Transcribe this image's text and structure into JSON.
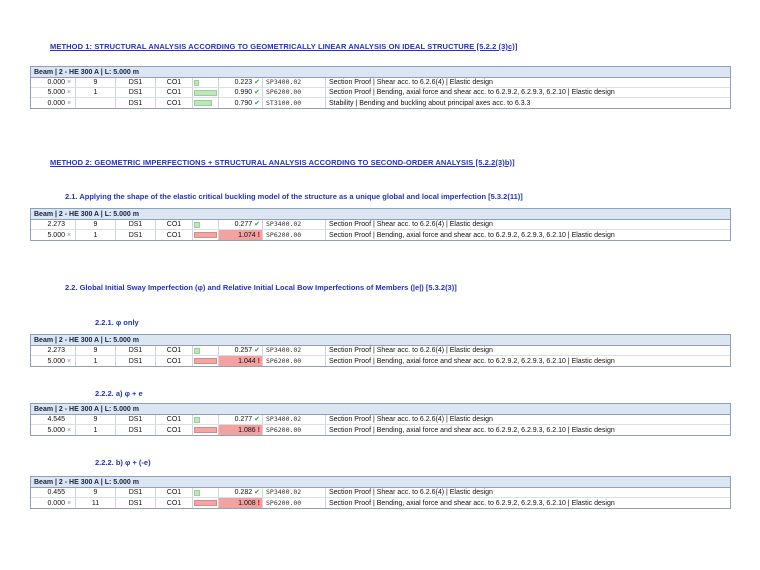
{
  "colors": {
    "heading_blue": "#2333bd",
    "table_header_bg": "#dce6f3",
    "pass_bar_green": "#bfe6bb",
    "fail_bar_red": "#f0a6a2",
    "fail_cell_bg": "#f2a2a0",
    "pass_check_green": "#2f9e36",
    "fail_mark_red": "#b40000",
    "table_border": "#8fa1b8"
  },
  "icons": {
    "check": "✔",
    "fail": "!",
    "extreme_marker": "×"
  },
  "headings": {
    "method1": "METHOD 1: STRUCTURAL ANALYSIS ACCORDING TO GEOMETRICALLY LINEAR ANALYSIS ON IDEAL STRUCTURE [5.2.2 (3)c)]",
    "method2": "METHOD 2: GEOMETRIC IMPERFECTIONS + STRUCTURAL ANALYSIS ACCORDING TO SECOND-ORDER ANALYSIS [5.2.2(3)b)]",
    "s21": "2.1. Applying the shape of the elastic critical buckling model of the structure as a unique global and local imperfection [5.3.2(11)]",
    "s22": "2.2. Global Initial Sway Imperfection (φ) and Relative Initial Local Bow Imperfections of Members (|e|) [5.3.2(3)]",
    "s221": "2.2.1. φ only",
    "s222a": "2.2.2. a) φ + e",
    "s222b": "2.2.2. b) φ + (-e)"
  },
  "table_header": "Beam | 2 - HE 300 A | L: 5.000 m",
  "tables": [
    {
      "rows": [
        {
          "x": "0.000",
          "marker": true,
          "n": "9",
          "ds": "DS1",
          "co": "CO1",
          "ratio": "0.223",
          "status": "pass",
          "code": "SP3400.02",
          "desc": "Section Proof | Shear acc. to 6.2.6(4) | Elastic design"
        },
        {
          "x": "5.000",
          "marker": true,
          "n": "1",
          "ds": "DS1",
          "co": "CO1",
          "ratio": "0.990",
          "status": "pass",
          "code": "SP6200.00",
          "desc": "Section Proof | Bending, axial force and shear acc. to 6.2.9.2, 6.2.9.3, 6.2.10 | Elastic design"
        },
        {
          "x": "0.000",
          "marker": true,
          "n": "",
          "ds": "DS1",
          "co": "CO1",
          "ratio": "0.790",
          "status": "pass",
          "code": "ST3100.00",
          "desc": "Stability | Bending and buckling about principal axes acc. to 6.3.3"
        }
      ]
    },
    {
      "rows": [
        {
          "x": "2.273",
          "marker": false,
          "n": "9",
          "ds": "DS1",
          "co": "CO1",
          "ratio": "0.277",
          "status": "pass",
          "code": "SP3400.02",
          "desc": "Section Proof | Shear acc. to 6.2.6(4) | Elastic design"
        },
        {
          "x": "5.000",
          "marker": true,
          "n": "1",
          "ds": "DS1",
          "co": "CO1",
          "ratio": "1.074",
          "status": "fail",
          "code": "SP6200.00",
          "desc": "Section Proof | Bending, axial force and shear acc. to 6.2.9.2, 6.2.9.3, 6.2.10 | Elastic design"
        }
      ]
    },
    {
      "rows": [
        {
          "x": "2.273",
          "marker": false,
          "n": "9",
          "ds": "DS1",
          "co": "CO1",
          "ratio": "0.257",
          "status": "pass",
          "code": "SP3400.02",
          "desc": "Section Proof | Shear acc. to 6.2.6(4) | Elastic design"
        },
        {
          "x": "5.000",
          "marker": true,
          "n": "1",
          "ds": "DS1",
          "co": "CO1",
          "ratio": "1.044",
          "status": "fail",
          "code": "SP6200.00",
          "desc": "Section Proof | Bending, axial force and shear acc. to 6.2.9.2, 6.2.9.3, 6.2.10 | Elastic design"
        }
      ]
    },
    {
      "rows": [
        {
          "x": "4.545",
          "marker": false,
          "n": "9",
          "ds": "DS1",
          "co": "CO1",
          "ratio": "0.277",
          "status": "pass",
          "code": "SP3400.02",
          "desc": "Section Proof | Shear acc. to 6.2.6(4) | Elastic design"
        },
        {
          "x": "5.000",
          "marker": true,
          "n": "1",
          "ds": "DS1",
          "co": "CO1",
          "ratio": "1.086",
          "status": "fail",
          "code": "SP6200.00",
          "desc": "Section Proof | Bending, axial force and shear acc. to 6.2.9.2, 6.2.9.3, 6.2.10 | Elastic design"
        }
      ]
    },
    {
      "rows": [
        {
          "x": "0.455",
          "marker": false,
          "n": "9",
          "ds": "DS1",
          "co": "CO1",
          "ratio": "0.282",
          "status": "pass",
          "code": "SP3400.02",
          "desc": "Section Proof | Shear acc. to 6.2.6(4) | Elastic design"
        },
        {
          "x": "0.000",
          "marker": true,
          "n": "11",
          "ds": "DS1",
          "co": "CO1",
          "ratio": "1.008",
          "status": "fail",
          "code": "SP6200.00",
          "desc": "Section Proof | Bending, axial force and shear acc. to 6.2.9.2, 6.2.9.3, 6.2.10 | Elastic design"
        }
      ]
    }
  ]
}
